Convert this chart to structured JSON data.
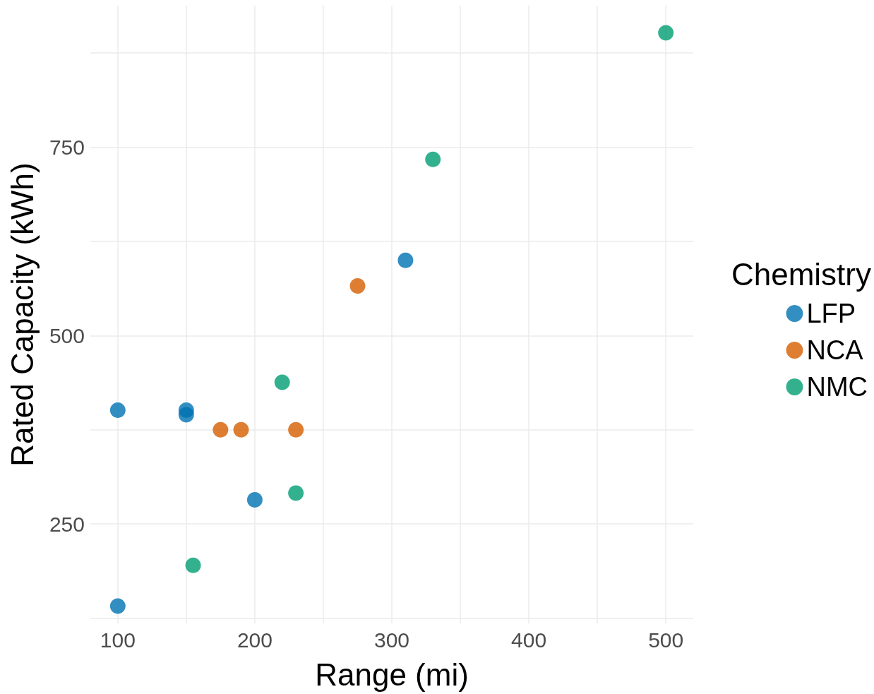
{
  "chart_data": {
    "type": "scatter",
    "xlabel": "Range (mi)",
    "ylabel": "Rated Capacity (kWh)",
    "legend_title": "Chemistry",
    "xlim": [
      80,
      520
    ],
    "xticks": [
      100,
      {
        "value": 150,
        "label": null
      },
      200,
      {
        "value": 250,
        "label": null
      },
      300,
      {
        "value": 350,
        "label": null
      },
      400,
      {
        "value": 450,
        "label": null
      },
      500
    ],
    "ylim": [
      118,
      938
    ],
    "yticks": [
      {
        "value": 125,
        "label": null
      },
      250,
      {
        "value": 375,
        "label": null
      },
      500,
      {
        "value": 625,
        "label": null
      },
      750,
      {
        "value": 875,
        "label": null
      }
    ],
    "grid": true,
    "legend": "right",
    "marker": "circle",
    "series": [
      {
        "name": "LFP",
        "color": "#0072b2",
        "x": [
          100,
          150,
          150,
          200,
          310,
          100
        ],
        "values": [
          401,
          401,
          395,
          282,
          600,
          141
        ]
      },
      {
        "name": "NCA",
        "color": "#d55e00",
        "x": [
          175,
          190,
          230,
          275
        ],
        "values": [
          375,
          375,
          375,
          566
        ]
      },
      {
        "name": "NMC",
        "color": "#009e73",
        "x": [
          500,
          330,
          220,
          230,
          155
        ],
        "values": [
          902,
          734,
          438,
          291,
          195
        ]
      }
    ]
  }
}
